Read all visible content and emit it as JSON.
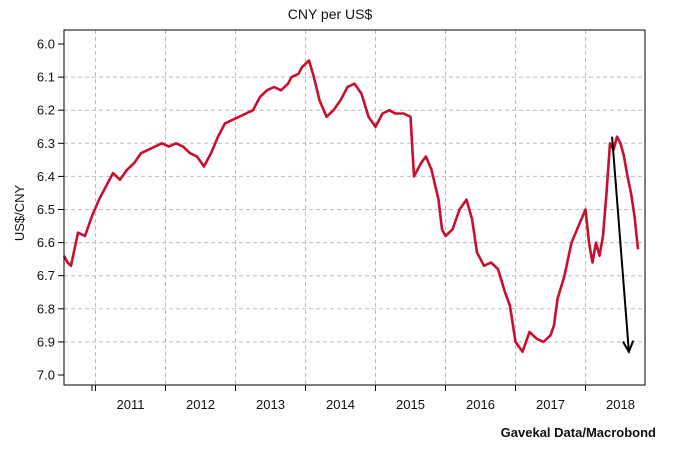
{
  "chart_data": {
    "type": "line",
    "title": "CNY per US$",
    "ylabel": "US$/CNY",
    "source": "Gavekal Data/Macrobond",
    "ylim": [
      6.0,
      7.0
    ],
    "y_inverted": true,
    "yticks": [
      "6.0",
      "6.1",
      "6.2",
      "6.3",
      "6.4",
      "6.5",
      "6.6",
      "6.7",
      "6.8",
      "6.9",
      "7.0"
    ],
    "xlim": [
      2010.55,
      2018.85
    ],
    "xticks": [
      "2011",
      "2012",
      "2013",
      "2014",
      "2015",
      "2016",
      "2017",
      "2018"
    ],
    "grid": true,
    "series_color": "#c8102e",
    "series": [
      {
        "x": [
          2010.55,
          2010.6,
          2010.65,
          2010.7,
          2010.75,
          2010.85,
          2010.95,
          2011.05,
          2011.15,
          2011.25,
          2011.35,
          2011.45,
          2011.55,
          2011.65,
          2011.75,
          2011.85,
          2011.95,
          2012.05,
          2012.15,
          2012.25,
          2012.35,
          2012.45,
          2012.55,
          2012.65,
          2012.75,
          2012.85,
          2012.95,
          2013.05,
          2013.15,
          2013.25,
          2013.35,
          2013.45,
          2013.55,
          2013.65,
          2013.75,
          2013.8,
          2013.9,
          2013.95,
          2014.05,
          2014.12,
          2014.2,
          2014.3,
          2014.4,
          2014.5,
          2014.6,
          2014.7,
          2014.8,
          2014.9,
          2015.0,
          2015.1,
          2015.2,
          2015.28,
          2015.4,
          2015.5,
          2015.55,
          2015.6,
          2015.65,
          2015.72,
          2015.8,
          2015.9,
          2015.95,
          2016.0,
          2016.1,
          2016.2,
          2016.3,
          2016.38,
          2016.45,
          2016.55,
          2016.65,
          2016.75,
          2016.85,
          2016.92,
          2017.0,
          2017.1,
          2017.2,
          2017.3,
          2017.4,
          2017.5,
          2017.55,
          2017.6,
          2017.7,
          2017.8,
          2017.9,
          2018.0,
          2018.05,
          2018.1,
          2018.15,
          2018.2,
          2018.25,
          2018.3,
          2018.35,
          2018.4,
          2018.45,
          2018.5,
          2018.55,
          2018.6,
          2018.65,
          2018.7,
          2018.75
        ],
        "y": [
          6.64,
          6.66,
          6.67,
          6.62,
          6.57,
          6.58,
          6.52,
          6.47,
          6.43,
          6.39,
          6.41,
          6.38,
          6.36,
          6.33,
          6.32,
          6.31,
          6.3,
          6.31,
          6.3,
          6.31,
          6.33,
          6.34,
          6.37,
          6.33,
          6.28,
          6.24,
          6.23,
          6.22,
          6.21,
          6.2,
          6.16,
          6.14,
          6.13,
          6.14,
          6.12,
          6.1,
          6.09,
          6.07,
          6.05,
          6.1,
          6.17,
          6.22,
          6.2,
          6.17,
          6.13,
          6.12,
          6.15,
          6.22,
          6.25,
          6.21,
          6.2,
          6.21,
          6.21,
          6.22,
          6.4,
          6.38,
          6.36,
          6.34,
          6.38,
          6.47,
          6.56,
          6.58,
          6.56,
          6.5,
          6.47,
          6.53,
          6.63,
          6.67,
          6.66,
          6.68,
          6.75,
          6.79,
          6.9,
          6.93,
          6.87,
          6.89,
          6.9,
          6.88,
          6.85,
          6.77,
          6.7,
          6.6,
          6.55,
          6.5,
          6.6,
          6.66,
          6.6,
          6.64,
          6.58,
          6.45,
          6.3,
          6.32,
          6.28,
          6.3,
          6.34,
          6.4,
          6.45,
          6.52,
          6.62
        ]
      }
    ],
    "annotation": {
      "type": "arrow",
      "color": "#000000",
      "from": [
        2018.38,
        6.28
      ],
      "to": [
        2018.62,
        6.93
      ]
    }
  }
}
